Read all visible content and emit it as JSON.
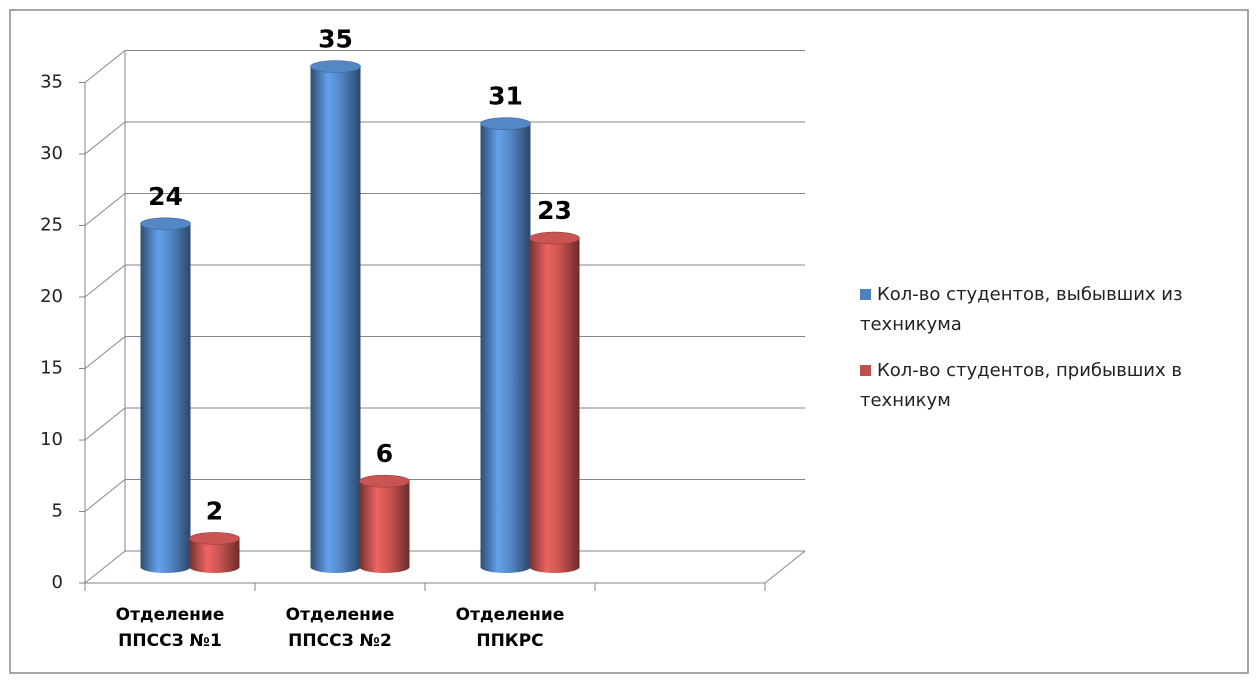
{
  "chart_data": {
    "type": "bar",
    "categories": [
      "Отделение ППССЗ №1",
      "Отделение ППССЗ №2",
      "Отделение ППКРС",
      null
    ],
    "series": [
      {
        "name": "Кол-во студентов, выбывших из техникума",
        "color": "#4f81bd",
        "values": [
          24,
          35,
          31,
          null
        ]
      },
      {
        "name": "Кол-во студентов, прибывших в техникум",
        "color": "#c0504d",
        "values": [
          2,
          6,
          23,
          null
        ]
      }
    ],
    "ylim": [
      0,
      35
    ],
    "yticks": [
      0,
      5,
      10,
      15,
      20,
      25,
      30,
      35
    ],
    "grid": true,
    "legend": "right"
  }
}
